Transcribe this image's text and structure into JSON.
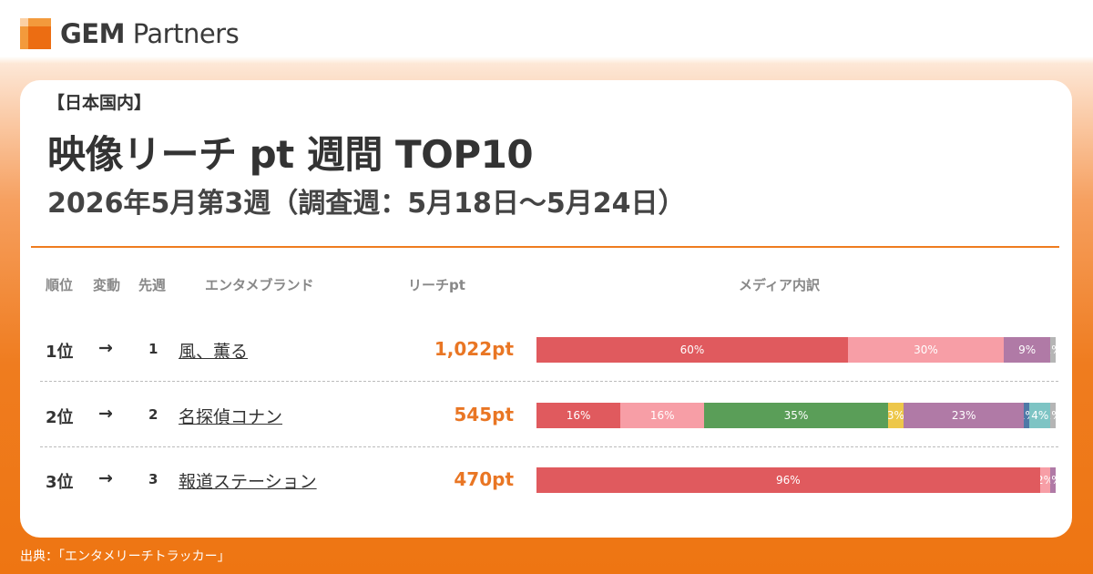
{
  "brand": {
    "logo_bold": "GEM",
    "logo_rest": " Partners"
  },
  "header": {
    "tag": "【日本国内】",
    "title": "映像リーチ pt 週間 TOP10",
    "subtitle": "2026年5月第3週（調査週：5月18日～5月24日）"
  },
  "columns": {
    "rank": "順位",
    "change": "変動",
    "prev": "先週",
    "brand": "エンタメブランド",
    "reach": "リーチpt",
    "media": "メディア内訳"
  },
  "colors": {
    "accent": "#ef7c1f",
    "red": "#e05a5e",
    "pink": "#f79ea6",
    "green": "#5a9e58",
    "yellow": "#edc74a",
    "purple": "#b07aa6",
    "blue": "#4e79a7",
    "teal": "#7ec4c4",
    "gray": "#b5b5b5"
  },
  "rows": [
    {
      "rank": "1位",
      "arrow": "→",
      "prev": "1",
      "brand": "風、薫る",
      "reach": "1,022pt",
      "segments": [
        {
          "value": 60,
          "label": "60%",
          "color": "#e05a5e"
        },
        {
          "value": 30,
          "label": "30%",
          "color": "#f79ea6"
        },
        {
          "value": 9,
          "label": "9%",
          "color": "#b07aa6"
        },
        {
          "value": 1,
          "label": "1%",
          "color": "#b5b5b5"
        }
      ]
    },
    {
      "rank": "2位",
      "arrow": "→",
      "prev": "2",
      "brand": "名探偵コナン",
      "reach": "545pt",
      "segments": [
        {
          "value": 16,
          "label": "16%",
          "color": "#e05a5e"
        },
        {
          "value": 16,
          "label": "16%",
          "color": "#f79ea6"
        },
        {
          "value": 35,
          "label": "35%",
          "color": "#5a9e58"
        },
        {
          "value": 3,
          "label": "3%",
          "color": "#edc74a"
        },
        {
          "value": 23,
          "label": "23%",
          "color": "#b07aa6"
        },
        {
          "value": 1,
          "label": "1%",
          "color": "#4e79a7"
        },
        {
          "value": 4,
          "label": "4%",
          "color": "#7ec4c4"
        },
        {
          "value": 1,
          "label": "1%",
          "color": "#b5b5b5"
        }
      ]
    },
    {
      "rank": "3位",
      "arrow": "→",
      "prev": "3",
      "brand": "報道ステーション",
      "reach": "470pt",
      "segments": [
        {
          "value": 96,
          "label": "96%",
          "color": "#e05a5e"
        },
        {
          "value": 2,
          "label": "2%",
          "color": "#f79ea6"
        },
        {
          "value": 1,
          "label": "1%",
          "color": "#b07aa6"
        }
      ]
    }
  ],
  "footer": "出典：「エンタメリーチトラッカー」"
}
